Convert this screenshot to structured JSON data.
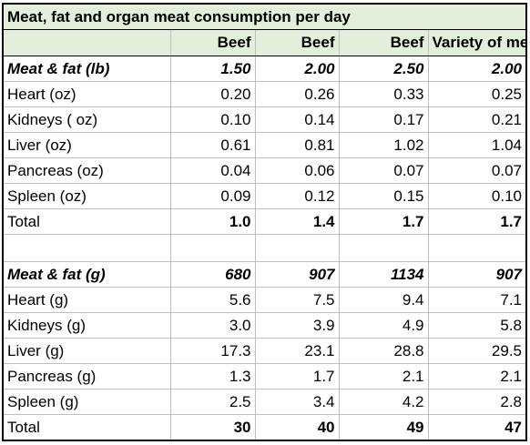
{
  "title": "Meat, fat and organ meat consumption per day",
  "columns": [
    "",
    "Beef",
    "Beef",
    "Beef",
    "Variety of meat"
  ],
  "section_lb": {
    "main": {
      "label": "Meat & fat (lb)",
      "values": [
        "1.50",
        "2.00",
        "2.50",
        "2.00"
      ]
    },
    "rows": [
      {
        "label": "Heart (oz)",
        "values": [
          "0.20",
          "0.26",
          "0.33",
          "0.25"
        ]
      },
      {
        "label": "Kidneys ( oz)",
        "values": [
          "0.10",
          "0.14",
          "0.17",
          "0.21"
        ]
      },
      {
        "label": "Liver (oz)",
        "values": [
          "0.61",
          "0.81",
          "1.02",
          "1.04"
        ]
      },
      {
        "label": "Pancreas (oz)",
        "values": [
          "0.04",
          "0.06",
          "0.07",
          "0.07"
        ]
      },
      {
        "label": "Spleen (oz)",
        "values": [
          "0.09",
          "0.12",
          "0.15",
          "0.10"
        ]
      }
    ],
    "total": {
      "label": "Total",
      "values": [
        "1.0",
        "1.4",
        "1.7",
        "1.7"
      ]
    }
  },
  "section_g": {
    "main": {
      "label": "Meat & fat (g)",
      "values": [
        "680",
        "907",
        "1134",
        "907"
      ]
    },
    "rows": [
      {
        "label": "Heart (g)",
        "values": [
          "5.6",
          "7.5",
          "9.4",
          "7.1"
        ]
      },
      {
        "label": "Kidneys (g)",
        "values": [
          "3.0",
          "3.9",
          "4.9",
          "5.8"
        ]
      },
      {
        "label": "Liver (g)",
        "values": [
          "17.3",
          "23.1",
          "28.8",
          "29.5"
        ]
      },
      {
        "label": "Pancreas (g)",
        "values": [
          "1.3",
          "1.7",
          "2.1",
          "2.1"
        ]
      },
      {
        "label": "Spleen (g)",
        "values": [
          "2.5",
          "3.4",
          "4.2",
          "2.8"
        ]
      }
    ],
    "total": {
      "label": "Total",
      "values": [
        "30",
        "40",
        "49",
        "47"
      ]
    }
  },
  "colors": {
    "header_fill": "#e2efda",
    "grid": "#bfbfbf",
    "border": "#000000"
  }
}
